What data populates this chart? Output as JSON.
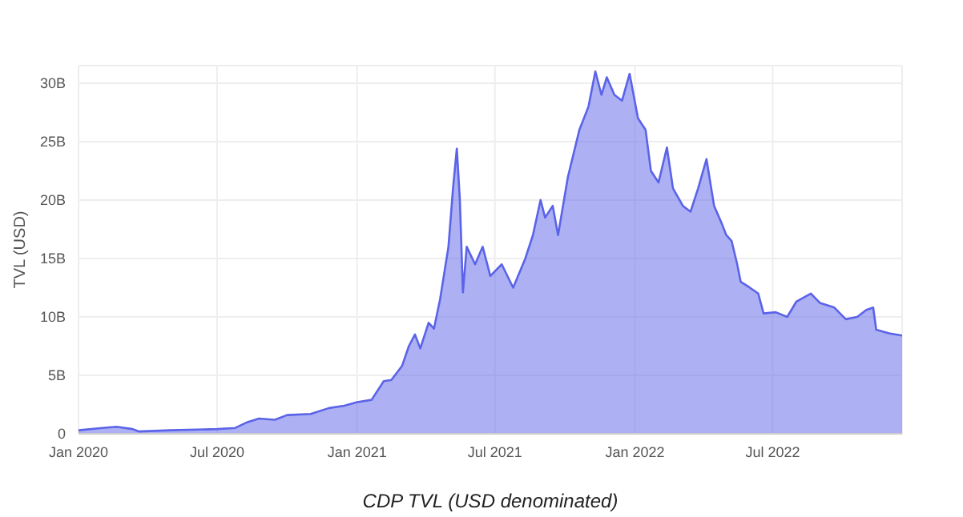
{
  "chart_data": {
    "type": "area",
    "xlabel": "CDP TVL (USD denominated)",
    "ylabel": "TVL (USD)",
    "x": [
      "2020-01-01",
      "2020-02-01",
      "2020-02-20",
      "2020-03-12",
      "2020-03-20",
      "2020-05-01",
      "2020-07-01",
      "2020-07-25",
      "2020-08-10",
      "2020-08-25",
      "2020-09-15",
      "2020-10-01",
      "2020-11-01",
      "2020-11-25",
      "2020-12-15",
      "2021-01-01",
      "2021-01-20",
      "2021-02-05",
      "2021-02-15",
      "2021-03-01",
      "2021-03-10",
      "2021-03-18",
      "2021-03-25",
      "2021-04-05",
      "2021-04-12",
      "2021-04-20",
      "2021-05-01",
      "2021-05-07",
      "2021-05-12",
      "2021-05-16",
      "2021-05-20",
      "2021-05-25",
      "2021-06-05",
      "2021-06-15",
      "2021-06-25",
      "2021-07-10",
      "2021-07-25",
      "2021-08-10",
      "2021-08-20",
      "2021-08-30",
      "2021-09-05",
      "2021-09-15",
      "2021-09-22",
      "2021-10-05",
      "2021-10-20",
      "2021-11-01",
      "2021-11-10",
      "2021-11-18",
      "2021-11-25",
      "2021-12-05",
      "2021-12-15",
      "2021-12-25",
      "2022-01-05",
      "2022-01-15",
      "2022-01-22",
      "2022-02-01",
      "2022-02-12",
      "2022-02-20",
      "2022-03-05",
      "2022-03-15",
      "2022-03-25",
      "2022-04-05",
      "2022-04-15",
      "2022-04-25",
      "2022-05-01",
      "2022-05-08",
      "2022-05-15",
      "2022-05-20",
      "2022-06-01",
      "2022-06-12",
      "2022-06-19",
      "2022-07-05",
      "2022-07-20",
      "2022-08-01",
      "2022-08-20",
      "2022-09-01",
      "2022-09-20",
      "2022-10-05",
      "2022-10-20",
      "2022-11-01",
      "2022-11-10",
      "2022-11-14",
      "2022-12-01",
      "2022-12-18"
    ],
    "series": [
      {
        "color": "#5b63e8",
        "values": [
          0.3,
          0.5,
          0.6,
          0.4,
          0.2,
          0.3,
          0.4,
          0.5,
          1.0,
          1.3,
          1.2,
          1.6,
          1.7,
          2.2,
          2.4,
          2.7,
          2.9,
          4.5,
          4.6,
          5.8,
          7.5,
          8.5,
          7.3,
          9.5,
          9.0,
          11.5,
          16,
          21,
          24.4,
          20,
          12.1,
          16,
          14.5,
          16,
          13.5,
          14.5,
          12.5,
          15,
          17,
          20,
          18.5,
          19.5,
          17,
          22,
          26,
          28,
          31,
          29,
          30.5,
          29,
          28.5,
          30.8,
          27,
          26,
          22.5,
          21.5,
          24.5,
          21,
          19.5,
          19,
          21,
          23.5,
          19.5,
          18,
          17,
          16.5,
          14.6,
          13,
          12.5,
          12,
          10.3,
          10.4,
          10,
          11.3,
          12,
          11.2,
          10.8,
          9.8,
          10,
          10.6,
          10.8,
          8.9,
          8.6,
          8.4
        ]
      }
    ],
    "xlim": [
      "2020-01-01",
      "2022-12-18"
    ],
    "xticks": [
      {
        "value": "2020-01-01",
        "label": "Jan 2020"
      },
      {
        "value": "2020-07-01",
        "label": "Jul 2020"
      },
      {
        "value": "2021-01-01",
        "label": "Jan 2021"
      },
      {
        "value": "2021-07-01",
        "label": "Jul 2021"
      },
      {
        "value": "2022-01-01",
        "label": "Jan 2022"
      },
      {
        "value": "2022-07-01",
        "label": "Jul 2022"
      }
    ],
    "ylim": [
      0,
      31.5
    ],
    "yticks": [
      0,
      {
        "value": 5,
        "label": "5B"
      },
      {
        "value": 10,
        "label": "10B"
      },
      {
        "value": 15,
        "label": "15B"
      },
      {
        "value": 20,
        "label": "20B"
      },
      {
        "value": 25,
        "label": "25B"
      },
      {
        "value": 30,
        "label": "30B"
      }
    ],
    "grid": true
  }
}
